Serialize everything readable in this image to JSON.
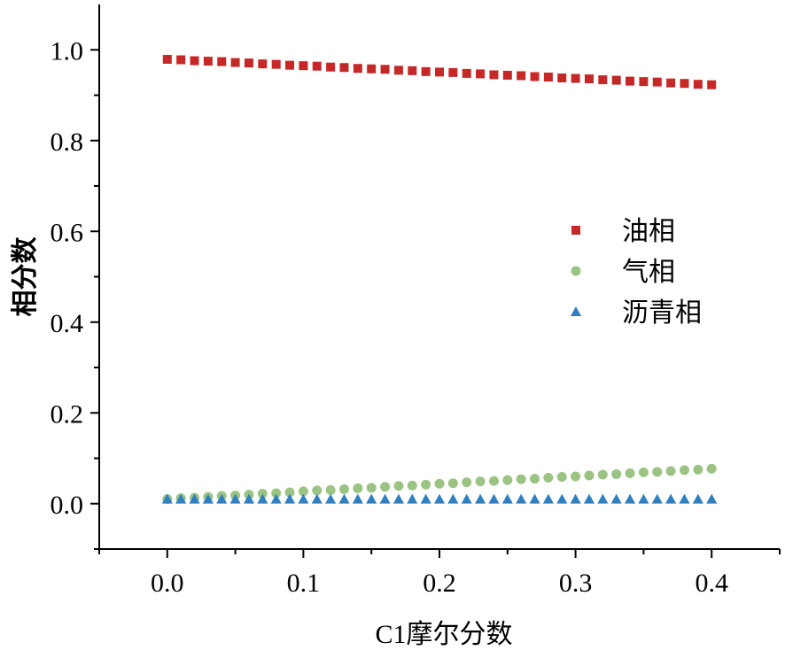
{
  "chart_data": {
    "type": "scatter",
    "title": "",
    "xlabel": "C1摩尔分数",
    "ylabel": "相分数",
    "xlim": [
      -0.05,
      0.45
    ],
    "ylim": [
      -0.1,
      1.1
    ],
    "x_ticks": [
      "0.0",
      "0.1",
      "0.2",
      "0.3",
      "0.4"
    ],
    "y_ticks": [
      "0.0",
      "0.2",
      "0.4",
      "0.6",
      "0.8",
      "1.0"
    ],
    "legend_position": "center-right",
    "grid": false,
    "series": [
      {
        "name": "油相",
        "marker": "square",
        "color": "#c62828",
        "x": [
          0.0,
          0.01,
          0.02,
          0.03,
          0.04,
          0.05,
          0.06,
          0.07,
          0.08,
          0.09,
          0.1,
          0.11,
          0.12,
          0.13,
          0.14,
          0.15,
          0.16,
          0.17,
          0.18,
          0.19,
          0.2,
          0.21,
          0.22,
          0.23,
          0.24,
          0.25,
          0.26,
          0.27,
          0.28,
          0.29,
          0.3,
          0.31,
          0.32,
          0.33,
          0.34,
          0.35,
          0.36,
          0.37,
          0.38,
          0.39,
          0.4
        ],
        "y": [
          0.979,
          0.978,
          0.976,
          0.975,
          0.974,
          0.972,
          0.971,
          0.969,
          0.968,
          0.966,
          0.965,
          0.964,
          0.962,
          0.961,
          0.959,
          0.958,
          0.957,
          0.955,
          0.954,
          0.952,
          0.951,
          0.95,
          0.948,
          0.947,
          0.945,
          0.944,
          0.943,
          0.941,
          0.94,
          0.938,
          0.937,
          0.936,
          0.934,
          0.933,
          0.931,
          0.93,
          0.929,
          0.927,
          0.926,
          0.924,
          0.923
        ]
      },
      {
        "name": "气相",
        "marker": "circle",
        "color": "#9bc484",
        "x": [
          0.0,
          0.01,
          0.02,
          0.03,
          0.04,
          0.05,
          0.06,
          0.07,
          0.08,
          0.09,
          0.1,
          0.11,
          0.12,
          0.13,
          0.14,
          0.15,
          0.16,
          0.17,
          0.18,
          0.19,
          0.2,
          0.21,
          0.22,
          0.23,
          0.24,
          0.25,
          0.26,
          0.27,
          0.28,
          0.29,
          0.3,
          0.31,
          0.32,
          0.33,
          0.34,
          0.35,
          0.36,
          0.37,
          0.38,
          0.39,
          0.4
        ],
        "y": [
          0.01,
          0.012,
          0.013,
          0.015,
          0.017,
          0.018,
          0.02,
          0.022,
          0.023,
          0.025,
          0.027,
          0.029,
          0.03,
          0.032,
          0.034,
          0.035,
          0.037,
          0.039,
          0.04,
          0.042,
          0.044,
          0.045,
          0.047,
          0.049,
          0.05,
          0.052,
          0.054,
          0.055,
          0.057,
          0.059,
          0.06,
          0.062,
          0.064,
          0.065,
          0.067,
          0.069,
          0.07,
          0.072,
          0.074,
          0.075,
          0.077
        ]
      },
      {
        "name": "沥青相",
        "marker": "triangle",
        "color": "#2f7fc1",
        "x": [
          0.0,
          0.01,
          0.02,
          0.03,
          0.04,
          0.05,
          0.06,
          0.07,
          0.08,
          0.09,
          0.1,
          0.11,
          0.12,
          0.13,
          0.14,
          0.15,
          0.16,
          0.17,
          0.18,
          0.19,
          0.2,
          0.21,
          0.22,
          0.23,
          0.24,
          0.25,
          0.26,
          0.27,
          0.28,
          0.29,
          0.3,
          0.31,
          0.32,
          0.33,
          0.34,
          0.35,
          0.36,
          0.37,
          0.38,
          0.39,
          0.4
        ],
        "y": [
          0.01,
          0.01,
          0.01,
          0.01,
          0.01,
          0.01,
          0.01,
          0.01,
          0.01,
          0.01,
          0.01,
          0.01,
          0.01,
          0.01,
          0.01,
          0.01,
          0.01,
          0.01,
          0.01,
          0.01,
          0.01,
          0.01,
          0.01,
          0.01,
          0.01,
          0.01,
          0.01,
          0.01,
          0.01,
          0.01,
          0.01,
          0.01,
          0.01,
          0.01,
          0.01,
          0.01,
          0.01,
          0.01,
          0.01,
          0.01,
          0.01
        ]
      }
    ]
  }
}
